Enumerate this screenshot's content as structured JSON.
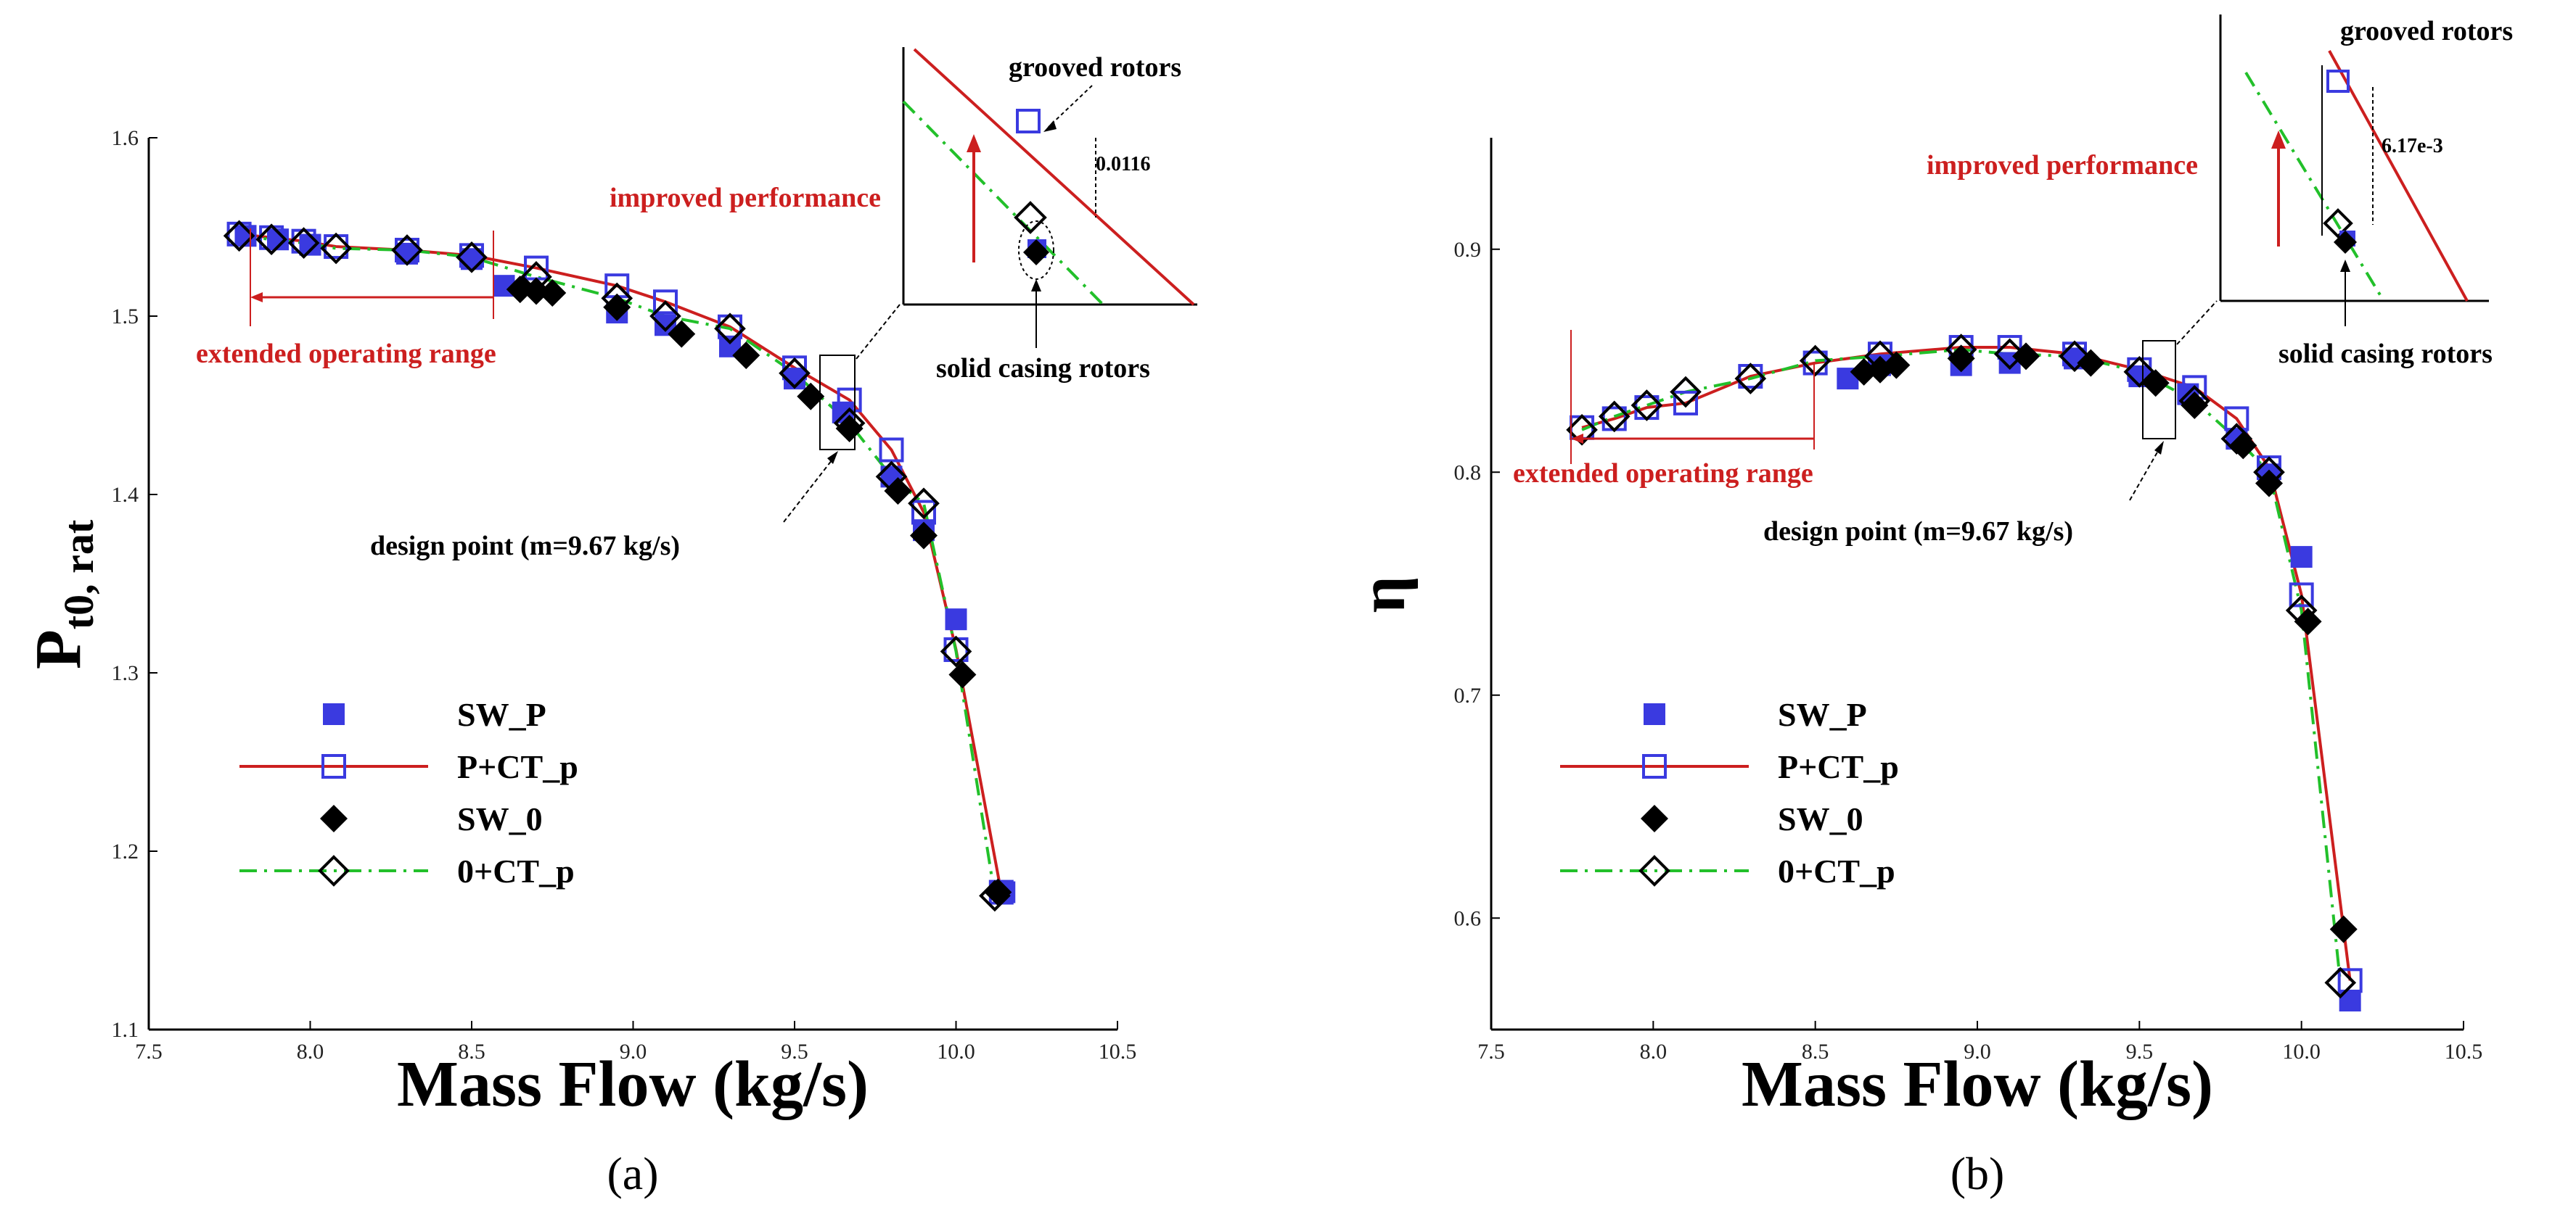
{
  "chart_data": [
    {
      "panel": "(a)",
      "type": "scatter",
      "xlabel": "Mass Flow (kg/s)",
      "ylabel_main": "P",
      "ylabel_sub": "t0, rat",
      "xlim": [
        7.5,
        10.5
      ],
      "ylim": [
        1.1,
        1.6
      ],
      "xticks": [
        "7.5",
        "8.0",
        "8.5",
        "9.0",
        "9.5",
        "10.0",
        "10.5"
      ],
      "yticks": [
        "1.1",
        "1.2",
        "1.3",
        "1.4",
        "1.5",
        "1.6"
      ],
      "series": [
        {
          "name": "SW_P",
          "style": "filled-square",
          "color": "#3a3ae0",
          "x": [
            7.8,
            7.9,
            8.0,
            8.3,
            8.5,
            8.6,
            8.95,
            9.1,
            9.3,
            9.5,
            9.65,
            9.8,
            9.9,
            10.0,
            10.15
          ],
          "y": [
            1.545,
            1.543,
            1.54,
            1.535,
            1.532,
            1.517,
            1.502,
            1.495,
            1.483,
            1.465,
            1.446,
            1.41,
            1.38,
            1.33,
            1.177
          ]
        },
        {
          "name": "P+CT_p",
          "style": "open-square-line",
          "color": "#cc1f1f",
          "marker_color": "#3a3ae0",
          "x": [
            7.78,
            7.88,
            7.98,
            8.08,
            8.3,
            8.5,
            8.7,
            8.95,
            9.1,
            9.3,
            9.5,
            9.67,
            9.8,
            9.9,
            10.0,
            10.14
          ],
          "y": [
            1.546,
            1.544,
            1.542,
            1.539,
            1.537,
            1.534,
            1.527,
            1.517,
            1.508,
            1.494,
            1.471,
            1.453,
            1.425,
            1.39,
            1.313,
            1.177
          ]
        },
        {
          "name": "SW_0",
          "style": "filled-diamond",
          "color": "#000000",
          "x": [
            8.65,
            8.7,
            8.75,
            8.95,
            9.15,
            9.35,
            9.55,
            9.67,
            9.82,
            9.9,
            10.02,
            10.13
          ],
          "y": [
            1.515,
            1.514,
            1.513,
            1.505,
            1.49,
            1.478,
            1.455,
            1.437,
            1.402,
            1.377,
            1.299,
            1.177
          ]
        },
        {
          "name": "0+CT_p",
          "style": "open-diamond-dashdot",
          "color": "#22c02a",
          "marker_color": "#000000",
          "x": [
            7.78,
            7.88,
            7.98,
            8.08,
            8.3,
            8.5,
            8.7,
            8.95,
            9.1,
            9.3,
            9.5,
            9.67,
            9.8,
            9.9,
            10.0,
            10.12
          ],
          "y": [
            1.545,
            1.543,
            1.541,
            1.538,
            1.537,
            1.533,
            1.522,
            1.51,
            1.5,
            1.493,
            1.468,
            1.44,
            1.41,
            1.395,
            1.312,
            1.175
          ]
        }
      ],
      "legend": [
        "SW_P",
        "P+CT_p",
        "SW_0",
        "0+CT_p"
      ],
      "annotations": {
        "extended": "extended operating range",
        "improved": "improved performance",
        "design_point": "design point (m=9.67 kg/s)",
        "grooved": "grooved rotors",
        "solid": "solid casing rotors",
        "delta": "0.0116"
      }
    },
    {
      "panel": "(b)",
      "type": "scatter",
      "xlabel": "Mass Flow (kg/s)",
      "ylabel_main": "η",
      "xlim": [
        7.5,
        10.5
      ],
      "ylim": [
        0.55,
        0.95
      ],
      "xticks": [
        "7.5",
        "8.0",
        "8.5",
        "9.0",
        "9.5",
        "10.0",
        "10.5"
      ],
      "yticks": [
        "0.6",
        "0.7",
        "0.8",
        "0.9"
      ],
      "series": [
        {
          "name": "SW_P",
          "style": "filled-square",
          "color": "#3a3ae0",
          "x": [
            8.6,
            8.7,
            8.95,
            9.1,
            9.3,
            9.5,
            9.65,
            9.8,
            9.9,
            10.0,
            10.15
          ],
          "y": [
            0.842,
            0.848,
            0.848,
            0.849,
            0.851,
            0.843,
            0.835,
            0.815,
            0.799,
            0.762,
            0.563
          ]
        },
        {
          "name": "P+CT_p",
          "style": "open-square-line",
          "color": "#cc1f1f",
          "marker_color": "#3a3ae0",
          "x": [
            7.78,
            7.88,
            7.98,
            8.1,
            8.3,
            8.5,
            8.7,
            8.95,
            9.1,
            9.3,
            9.5,
            9.67,
            9.8,
            9.9,
            10.0,
            10.15
          ],
          "y": [
            0.82,
            0.824,
            0.829,
            0.831,
            0.843,
            0.849,
            0.853,
            0.856,
            0.856,
            0.853,
            0.846,
            0.838,
            0.824,
            0.802,
            0.745,
            0.572
          ]
        },
        {
          "name": "SW_0",
          "style": "filled-diamond",
          "color": "#000000",
          "x": [
            8.65,
            8.7,
            8.75,
            8.95,
            9.15,
            9.35,
            9.55,
            9.67,
            9.82,
            9.9,
            10.02,
            10.13
          ],
          "y": [
            0.845,
            0.846,
            0.848,
            0.851,
            0.852,
            0.849,
            0.84,
            0.83,
            0.812,
            0.795,
            0.733,
            0.595
          ]
        },
        {
          "name": "0+CT_p",
          "style": "open-diamond-dashdot",
          "color": "#22c02a",
          "marker_color": "#000000",
          "x": [
            7.78,
            7.88,
            7.98,
            8.1,
            8.3,
            8.5,
            8.7,
            8.95,
            9.1,
            9.3,
            9.5,
            9.67,
            9.8,
            9.9,
            10.0,
            10.12
          ],
          "y": [
            0.819,
            0.825,
            0.83,
            0.836,
            0.842,
            0.85,
            0.852,
            0.855,
            0.853,
            0.852,
            0.845,
            0.832,
            0.815,
            0.8,
            0.738,
            0.571
          ]
        }
      ],
      "legend": [
        "SW_P",
        "P+CT_p",
        "SW_0",
        "0+CT_p"
      ],
      "annotations": {
        "extended": "extended operating range",
        "improved": "improved performance",
        "design_point": "design point (m=9.67 kg/s)",
        "grooved": "grooved rotors",
        "solid": "solid casing rotors",
        "delta": "6.17e-3"
      }
    }
  ]
}
